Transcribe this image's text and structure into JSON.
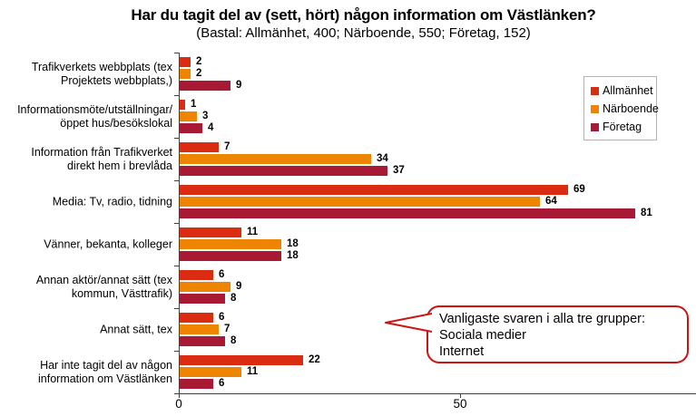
{
  "chart_data": {
    "type": "bar",
    "orientation": "horizontal",
    "title": "Har du tagit del av (sett, hört) någon information om Västlänken?",
    "subtitle": "(Bastal: Allmänhet, 400; Närboende, 550; Företag, 152)",
    "categories": [
      [
        "Trafikverkets webbplats (tex",
        "Projektets webbplats,)"
      ],
      [
        "Informationsmöte/utställningar/",
        "öppet hus/besökslokal"
      ],
      [
        "Information från Trafikverket",
        "direkt hem i brevlåda"
      ],
      [
        "Media: Tv, radio, tidning"
      ],
      [
        "Vänner, bekanta, kolleger"
      ],
      [
        "Annan aktör/annat sätt (tex",
        "kommun, Västtrafik)"
      ],
      [
        "Annat sätt, tex"
      ],
      [
        "Har inte tagit del av någon",
        "information om Västlänken"
      ]
    ],
    "series": [
      {
        "name": "Allmänhet",
        "color": "#D92C10",
        "values": [
          2,
          1,
          7,
          69,
          11,
          6,
          6,
          22
        ]
      },
      {
        "name": "Närboende",
        "color": "#EE8500",
        "values": [
          2,
          3,
          34,
          64,
          18,
          9,
          7,
          11
        ]
      },
      {
        "name": "Företag",
        "color": "#A81934",
        "values": [
          9,
          4,
          37,
          81,
          18,
          8,
          8,
          6
        ]
      }
    ],
    "x_ticks": [
      "0",
      "50"
    ],
    "x_tick_values": [
      0,
      50
    ],
    "xlim": [
      0,
      92
    ],
    "grid": false,
    "legend_position": "top-right",
    "value_labels": true
  },
  "callout": {
    "lines": [
      "Vanligaste svaren i alla tre grupper:",
      "Sociala medier",
      "Internet"
    ],
    "border_color": "#cc1414"
  }
}
